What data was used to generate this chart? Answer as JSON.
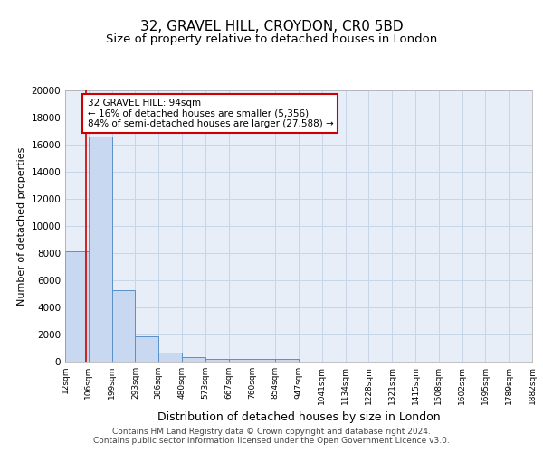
{
  "title": "32, GRAVEL HILL, CROYDON, CR0 5BD",
  "subtitle": "Size of property relative to detached houses in London",
  "xlabel": "Distribution of detached houses by size in London",
  "ylabel": "Number of detached properties",
  "bin_labels": [
    "12sqm",
    "106sqm",
    "199sqm",
    "293sqm",
    "386sqm",
    "480sqm",
    "573sqm",
    "667sqm",
    "760sqm",
    "854sqm",
    "947sqm",
    "1041sqm",
    "1134sqm",
    "1228sqm",
    "1321sqm",
    "1415sqm",
    "1508sqm",
    "1602sqm",
    "1695sqm",
    "1789sqm",
    "1882sqm"
  ],
  "bar_values": [
    8150,
    16600,
    5300,
    1850,
    700,
    330,
    230,
    210,
    190,
    170,
    0,
    0,
    0,
    0,
    0,
    0,
    0,
    0,
    0,
    0
  ],
  "bar_color": "#c8d8f0",
  "bar_edge_color": "#5a8fc8",
  "annotation_text": "32 GRAVEL HILL: 94sqm\n← 16% of detached houses are smaller (5,356)\n84% of semi-detached houses are larger (27,588) →",
  "annotation_box_color": "#ffffff",
  "annotation_box_edge_color": "#cc0000",
  "ylim": [
    0,
    20000
  ],
  "yticks": [
    0,
    2000,
    4000,
    6000,
    8000,
    10000,
    12000,
    14000,
    16000,
    18000,
    20000
  ],
  "grid_color": "#c8d4e8",
  "plot_bg_color": "#e8eef8",
  "footer_text": "Contains HM Land Registry data © Crown copyright and database right 2024.\nContains public sector information licensed under the Open Government Licence v3.0.",
  "title_fontsize": 11,
  "subtitle_fontsize": 9.5,
  "red_line_color": "#cc0000",
  "xlabel_fontsize": 9,
  "ylabel_fontsize": 8
}
